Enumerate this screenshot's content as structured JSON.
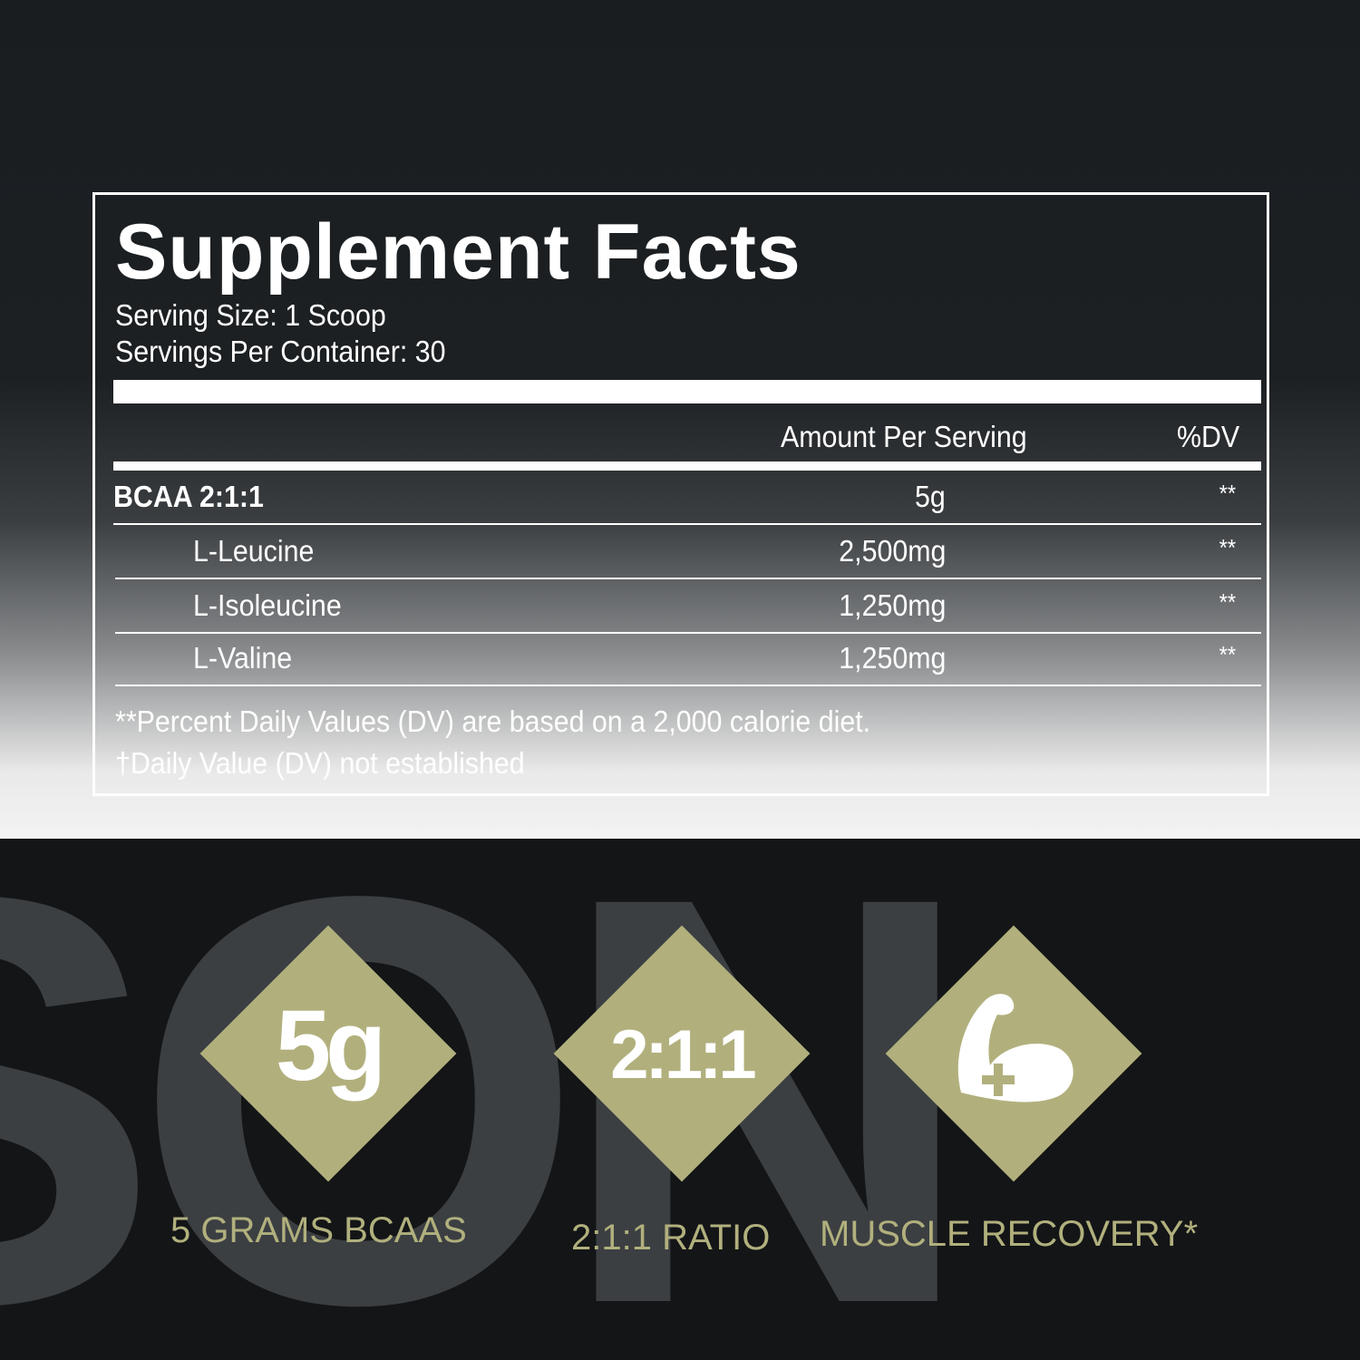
{
  "brand_watermark": "SON",
  "facts": {
    "title": "Supplement Facts",
    "serving_size": "Serving Size:  1 Scoop",
    "servings_per_container": "Servings Per Container: 30",
    "header_amount": "Amount Per Serving",
    "header_dv": "%DV",
    "rows": [
      {
        "name": "BCAA 2:1:1",
        "amount": "5g",
        "dv": "**"
      },
      {
        "name": "L-Leucine",
        "amount": "2,500mg",
        "dv": "**"
      },
      {
        "name": "L-Isoleucine",
        "amount": "1,250mg",
        "dv": "**"
      },
      {
        "name": "L-Valine",
        "amount": "1,250mg",
        "dv": "**"
      }
    ],
    "footnote1": "**Percent Daily Values (DV) are based on a 2,000 calorie diet.",
    "footnote2": "†Daily Value (DV) not established"
  },
  "badges": [
    {
      "icon_text": "5g",
      "caption": "5 GRAMS BCAAS"
    },
    {
      "icon_text": "2:1:1",
      "caption": "2:1:1 RATIO"
    },
    {
      "icon": "flexed-arm-plus-icon",
      "caption": "MUSCLE RECOVERY*"
    }
  ],
  "colors": {
    "accent": "#b1b07d",
    "watermark": "#3b3f42",
    "background": "#131517"
  }
}
